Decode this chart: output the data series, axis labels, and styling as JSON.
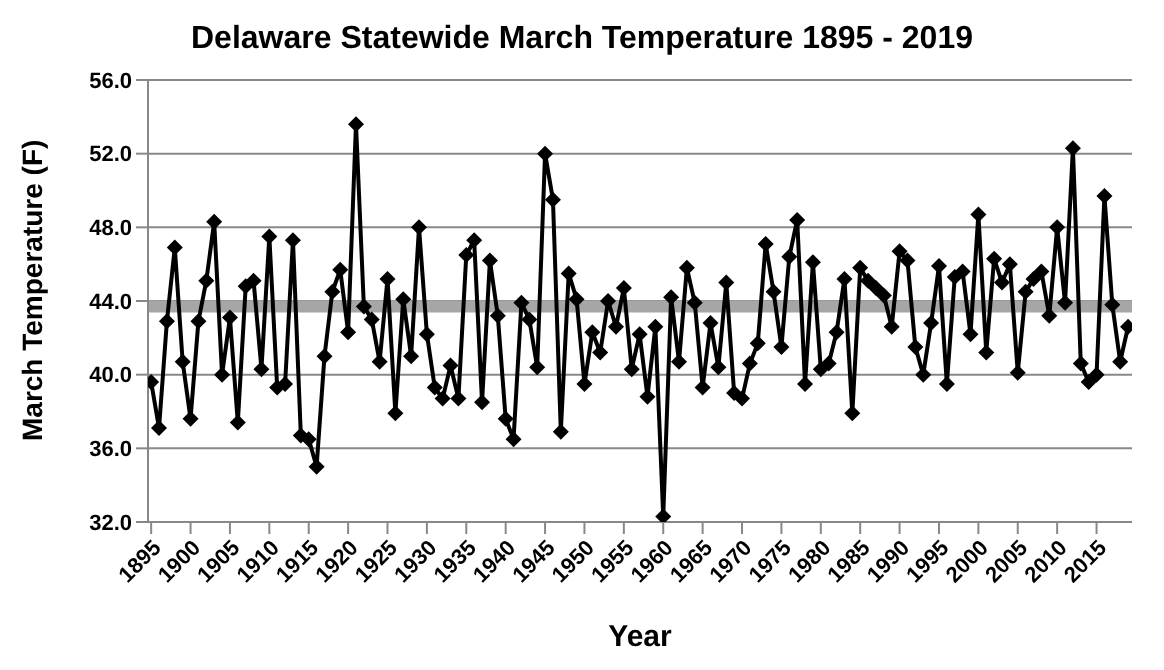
{
  "chart_data": {
    "type": "line",
    "title": "Delaware Statewide March Temperature 1895 - 2019",
    "xlabel": "Year",
    "ylabel": "March Temperature (F)",
    "x": [
      1895,
      1896,
      1897,
      1898,
      1899,
      1900,
      1901,
      1902,
      1903,
      1904,
      1905,
      1906,
      1907,
      1908,
      1909,
      1910,
      1911,
      1912,
      1913,
      1914,
      1915,
      1916,
      1917,
      1918,
      1919,
      1920,
      1921,
      1922,
      1923,
      1924,
      1925,
      1926,
      1927,
      1928,
      1929,
      1930,
      1931,
      1932,
      1933,
      1934,
      1935,
      1936,
      1937,
      1938,
      1939,
      1940,
      1941,
      1942,
      1943,
      1944,
      1945,
      1946,
      1947,
      1948,
      1949,
      1950,
      1951,
      1952,
      1953,
      1954,
      1955,
      1956,
      1957,
      1958,
      1959,
      1960,
      1961,
      1962,
      1963,
      1964,
      1965,
      1966,
      1967,
      1968,
      1969,
      1970,
      1971,
      1972,
      1973,
      1974,
      1975,
      1976,
      1977,
      1978,
      1979,
      1980,
      1981,
      1982,
      1983,
      1984,
      1985,
      1986,
      1987,
      1988,
      1989,
      1990,
      1991,
      1992,
      1993,
      1994,
      1995,
      1996,
      1997,
      1998,
      1999,
      2000,
      2001,
      2002,
      2003,
      2004,
      2005,
      2006,
      2007,
      2008,
      2009,
      2010,
      2011,
      2012,
      2013,
      2014,
      2015,
      2016,
      2017,
      2018,
      2019
    ],
    "series": [
      {
        "color": "#000000",
        "values": [
          39.6,
          37.1,
          42.9,
          46.9,
          40.7,
          37.6,
          42.9,
          45.1,
          48.3,
          40.0,
          43.1,
          37.4,
          44.8,
          45.1,
          40.3,
          47.5,
          39.3,
          39.5,
          47.3,
          36.7,
          36.5,
          35.0,
          41.0,
          44.5,
          45.7,
          42.3,
          53.6,
          43.7,
          43.0,
          40.7,
          45.2,
          37.9,
          44.1,
          41.0,
          48.0,
          42.2,
          39.3,
          38.7,
          40.5,
          38.7,
          46.5,
          47.3,
          38.5,
          46.2,
          43.2,
          37.6,
          36.5,
          43.9,
          43.0,
          40.4,
          52.0,
          49.5,
          36.9,
          45.5,
          44.1,
          39.5,
          42.3,
          41.2,
          44.0,
          42.6,
          44.7,
          40.3,
          42.2,
          38.8,
          42.6,
          32.3,
          44.2,
          40.7,
          45.8,
          43.9,
          39.3,
          42.8,
          40.4,
          45.0,
          39.0,
          38.7,
          40.6,
          41.7,
          47.1,
          44.5,
          41.5,
          46.4,
          48.4,
          39.5,
          46.1,
          40.3,
          40.6,
          42.3,
          45.2,
          37.9,
          45.8,
          45.1,
          44.7,
          44.3,
          42.6,
          46.7,
          46.2,
          41.5,
          40.0,
          42.8,
          45.9,
          39.5,
          45.3,
          45.6,
          42.2,
          48.7,
          41.2,
          46.3,
          45.0,
          46.0,
          40.1,
          44.5,
          45.2,
          45.6,
          43.2,
          48.0,
          43.9,
          52.3,
          40.6,
          39.6,
          40.0,
          49.7,
          43.8,
          40.7,
          42.6
        ]
      }
    ],
    "xlim": [
      1894.6,
      2019.5
    ],
    "xticks": [
      1895,
      1900,
      1905,
      1910,
      1915,
      1920,
      1925,
      1930,
      1935,
      1940,
      1945,
      1950,
      1955,
      1960,
      1965,
      1970,
      1975,
      1980,
      1985,
      1990,
      1995,
      2000,
      2005,
      2010,
      2015
    ],
    "ylim": [
      32,
      56
    ],
    "yticks": [
      {
        "value": 32,
        "label": "32.0"
      },
      {
        "value": 36,
        "label": "36.0"
      },
      {
        "value": 40,
        "label": "40.0"
      },
      {
        "value": 44,
        "label": "44.0"
      },
      {
        "value": 48,
        "label": "48.0"
      },
      {
        "value": 52,
        "label": "52.0"
      },
      {
        "value": 56,
        "label": "56.0"
      }
    ],
    "ref_lines": [
      {
        "axis": "y",
        "value": 43.7,
        "color": "#a6a6a6"
      }
    ],
    "grid": "y",
    "marker": "diamond",
    "line_style": "solid"
  }
}
